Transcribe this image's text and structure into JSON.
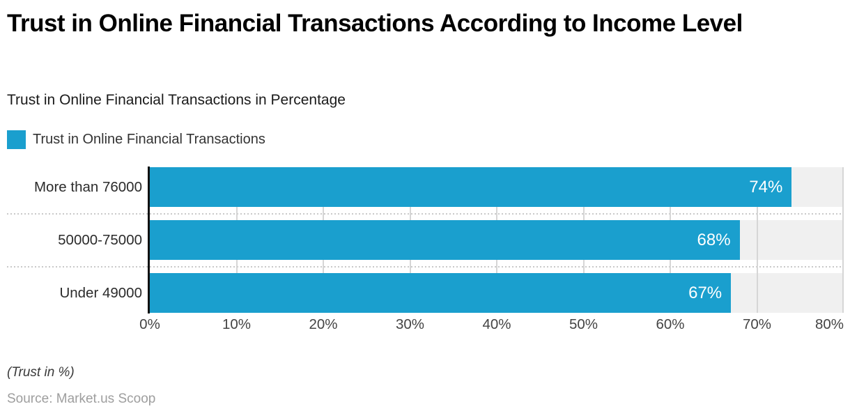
{
  "title": "Trust in Online Financial Transactions According to Income Level",
  "subtitle": "Trust in Online Financial Transactions in Percentage",
  "legend": {
    "label": "Trust in Online Financial Transactions",
    "color": "#1A9FCE"
  },
  "chart_data": {
    "type": "bar",
    "orientation": "horizontal",
    "title": "Trust in Online Financial Transactions According to Income Level",
    "subtitle": "Trust in Online Financial Transactions in Percentage",
    "series_name": "Trust in Online Financial Transactions",
    "categories": [
      "More than 76000",
      "50000-75000",
      "Under 49000"
    ],
    "values": [
      74,
      68,
      67
    ],
    "value_labels": [
      "74%",
      "68%",
      "67%"
    ],
    "xlim": [
      0,
      80
    ],
    "x_ticks": [
      "0%",
      "10%",
      "20%",
      "30%",
      "40%",
      "50%",
      "60%",
      "70%",
      "80%"
    ],
    "grid": "vertical",
    "legend_position": "top-left",
    "bar_color": "#1A9FCE",
    "track_color": "#F0F0F0",
    "gridline_color": "#D6D6D6"
  },
  "footer": {
    "note": "(Trust in %)",
    "source": "Source: Market.us Scoop"
  }
}
